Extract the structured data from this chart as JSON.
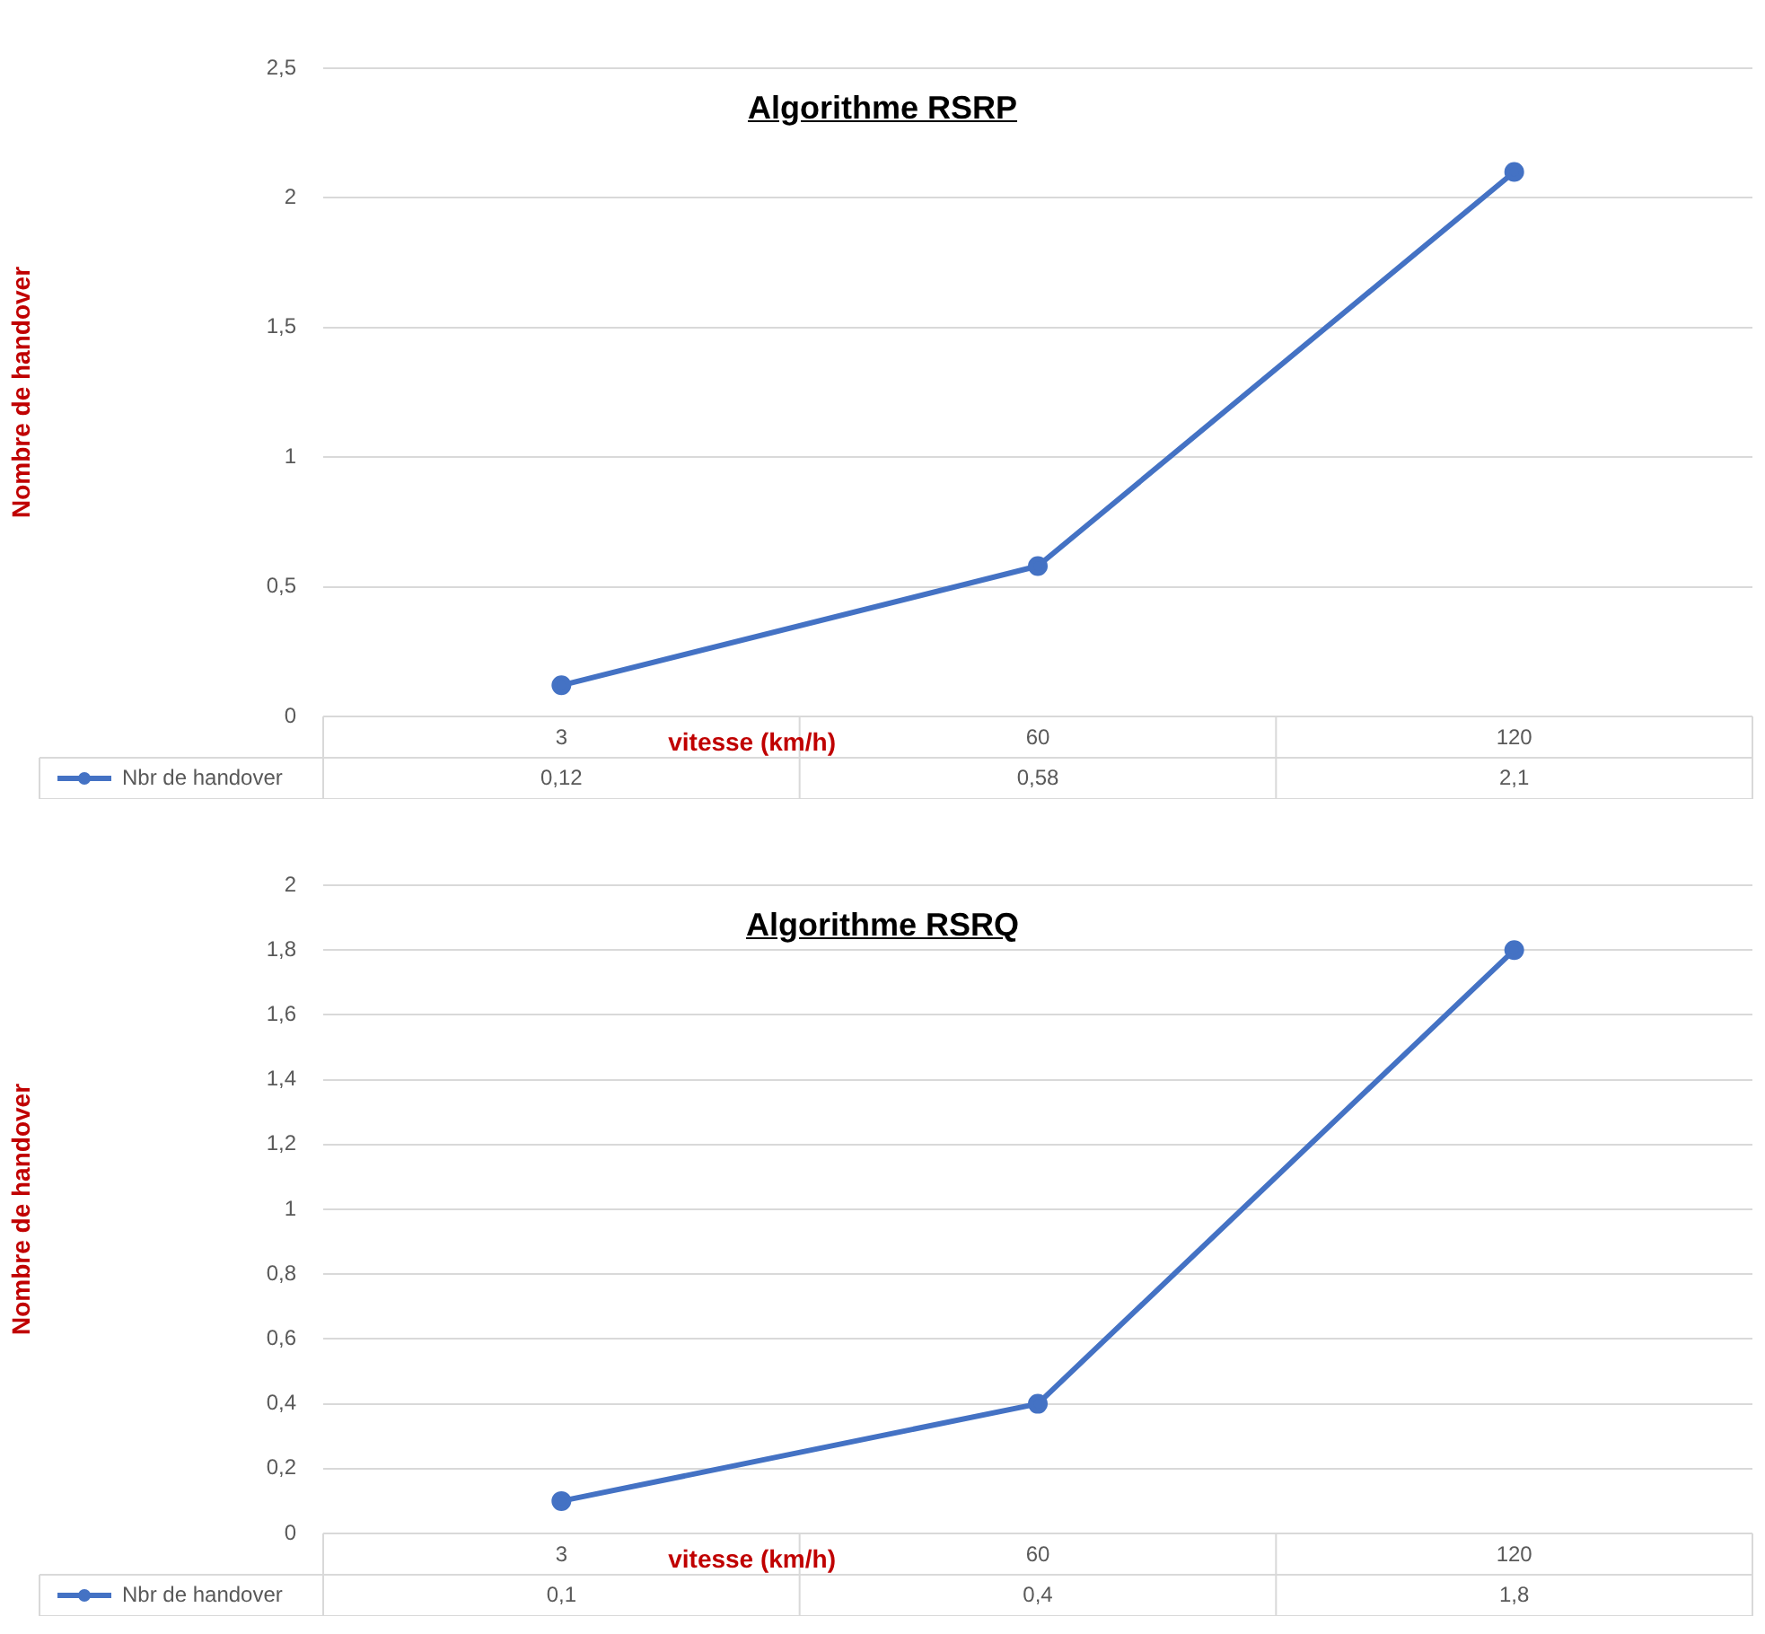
{
  "chart_data": [
    {
      "type": "line",
      "title": "Algorithme RSRP",
      "xlabel": "vitesse (km/h)",
      "ylabel": "Nombre de handover",
      "categories": [
        "3",
        "60",
        "120"
      ],
      "series": [
        {
          "name": "Nbr de handover",
          "color": "#4472c4",
          "values": [
            0.12,
            0.58,
            2.1
          ],
          "value_labels": [
            "0,12",
            "0,58",
            "2,1"
          ]
        }
      ],
      "ylim": [
        0,
        2.5
      ],
      "yticks": [
        0,
        {
          "value": 0.5,
          "label": "0,5"
        },
        1,
        {
          "value": 1.5,
          "label": "1,5"
        },
        2,
        {
          "value": 2.5,
          "label": "2,5"
        }
      ],
      "grid": "y",
      "legend": "bottom",
      "marker": "circle"
    },
    {
      "type": "line",
      "title": "Algorithme RSRQ",
      "xlabel": "vitesse (km/h)",
      "ylabel": "Nombre de handover",
      "categories": [
        "3",
        "60",
        "120"
      ],
      "series": [
        {
          "name": "Nbr de handover",
          "color": "#4472c4",
          "values": [
            0.1,
            0.4,
            1.8
          ],
          "value_labels": [
            "0,1",
            "0,4",
            "1,8"
          ]
        }
      ],
      "ylim": [
        0,
        2
      ],
      "yticks": [
        0,
        {
          "value": 0.2,
          "label": "0,2"
        },
        {
          "value": 0.4,
          "label": "0,4"
        },
        {
          "value": 0.6,
          "label": "0,6"
        },
        {
          "value": 0.8,
          "label": "0,8"
        },
        1,
        {
          "value": 1.2,
          "label": "1,2"
        },
        {
          "value": 1.4,
          "label": "1,4"
        },
        {
          "value": 1.6,
          "label": "1,6"
        },
        {
          "value": 1.8,
          "label": "1,8"
        },
        2
      ],
      "grid": "y",
      "legend": "bottom",
      "marker": "circle"
    }
  ]
}
